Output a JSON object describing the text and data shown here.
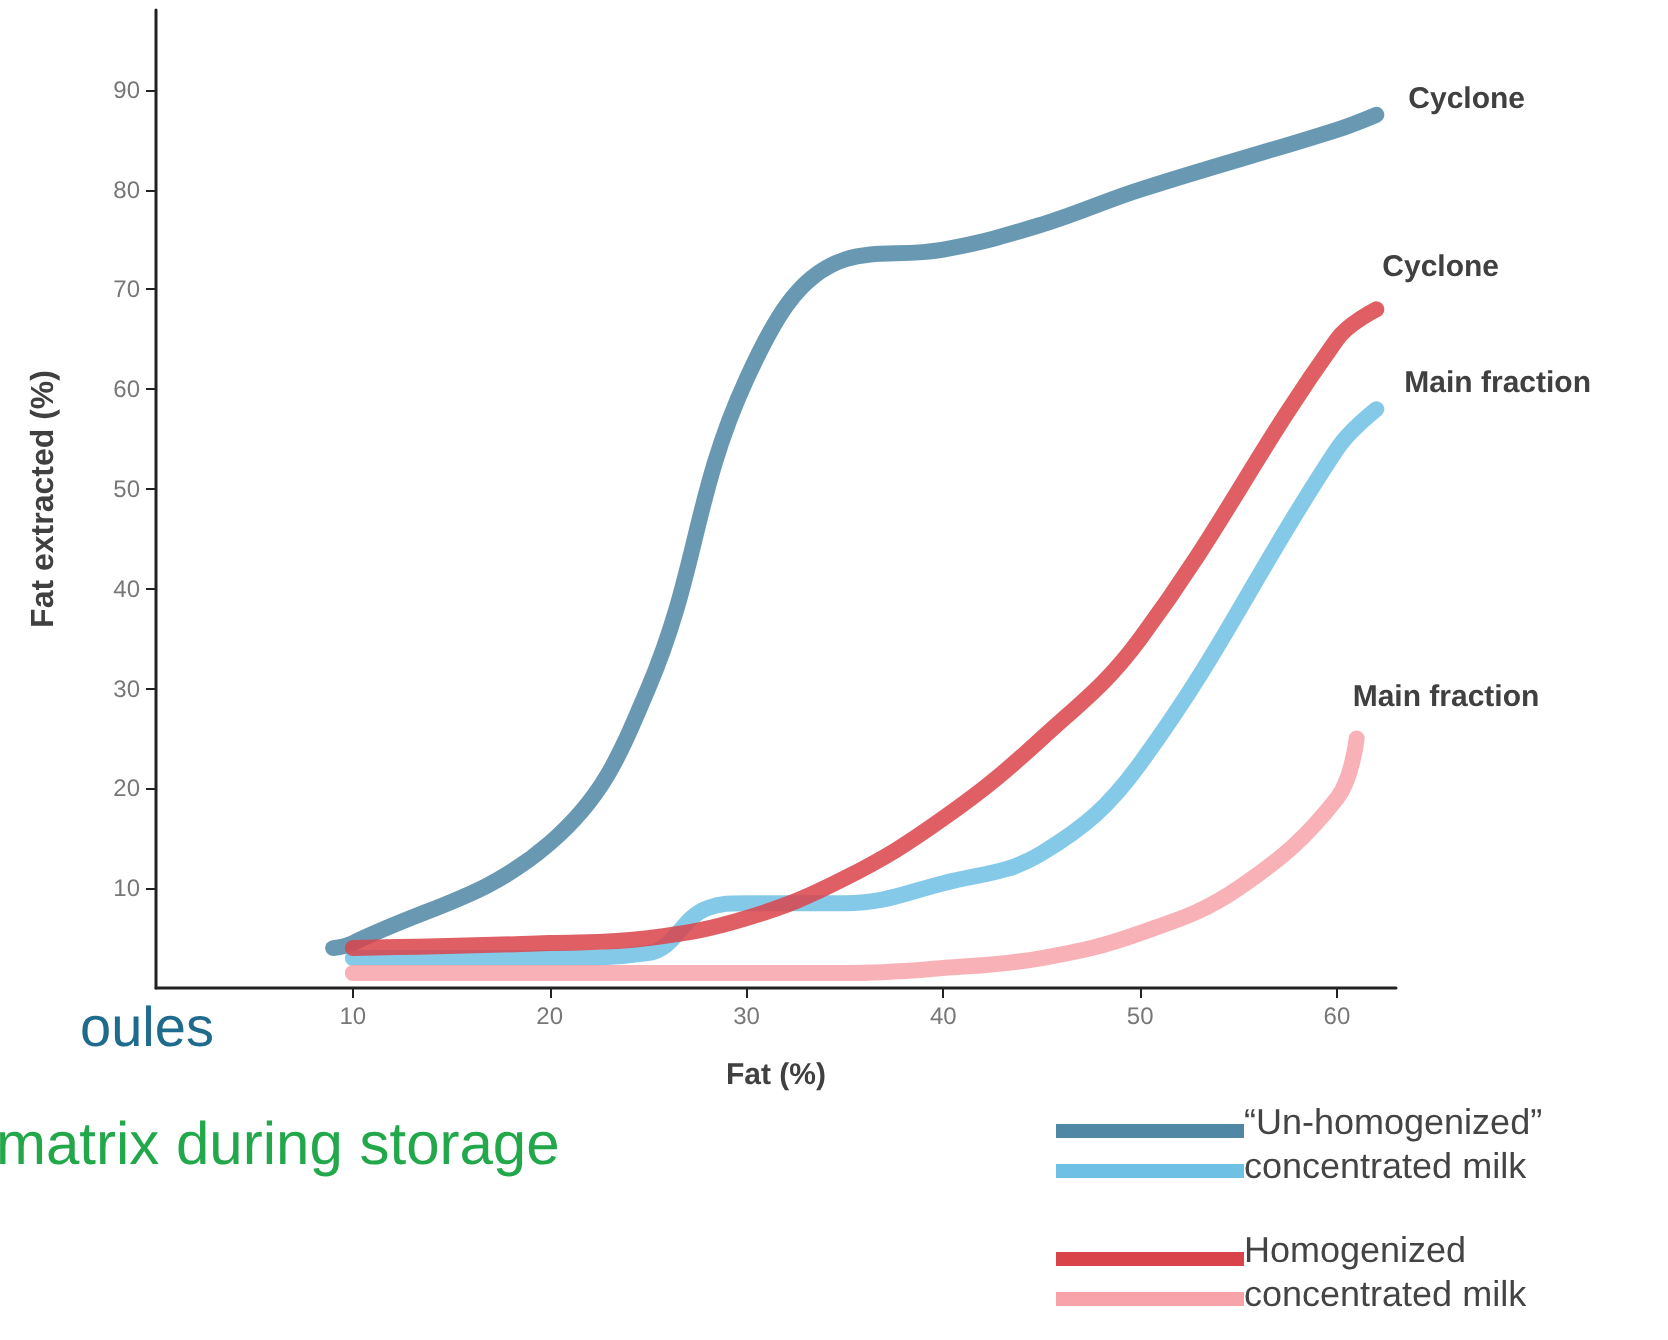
{
  "chart_data": {
    "type": "line",
    "xlabel": "Fat (%)",
    "ylabel": "Fat extracted (%)",
    "xlim": [
      0,
      63
    ],
    "xticks": [
      10,
      20,
      30,
      40,
      50,
      60
    ],
    "ylim": [
      0,
      98
    ],
    "yticks": [
      10,
      20,
      30,
      40,
      50,
      60,
      70,
      80,
      90
    ],
    "grid": false,
    "marker": "none",
    "line_style": "solid",
    "series": [
      {
        "name": "Cyclone",
        "color": "#4f87a5",
        "x": [
          9,
          10,
          20,
          25,
          30,
          35,
          40,
          45,
          50,
          60,
          62
        ],
        "values": [
          4,
          4.5,
          14.5,
          30,
          61,
          73,
          74,
          76.5,
          80,
          86,
          87.5
        ]
      },
      {
        "name": "Main fraction",
        "color": "#6ec1e4",
        "x": [
          10,
          20,
          25,
          28,
          30,
          35,
          40,
          45,
          50,
          60,
          62
        ],
        "values": [
          3,
          3,
          3.5,
          8,
          8.5,
          8.5,
          10.5,
          13.5,
          22.5,
          54,
          58
        ]
      },
      {
        "name": "Cyclone",
        "color": "#d9434a",
        "x": [
          10,
          20,
          25,
          30,
          35,
          40,
          45,
          50,
          60,
          62
        ],
        "values": [
          4,
          4.5,
          5,
          7,
          11,
          17,
          25,
          35,
          65,
          68
        ]
      },
      {
        "name": "Main fraction",
        "color": "#f7a3a9",
        "x": [
          10,
          20,
          30,
          35,
          40,
          45,
          50,
          55,
          60,
          61
        ],
        "values": [
          1.5,
          1.5,
          1.5,
          1.5,
          2,
          3,
          5.5,
          10,
          19,
          25
        ]
      }
    ],
    "annotations": [
      "oules",
      "matrix during storage",
      "“Un-homogenized” concentrated milk",
      "Homogenized concentrated milk"
    ]
  }
}
